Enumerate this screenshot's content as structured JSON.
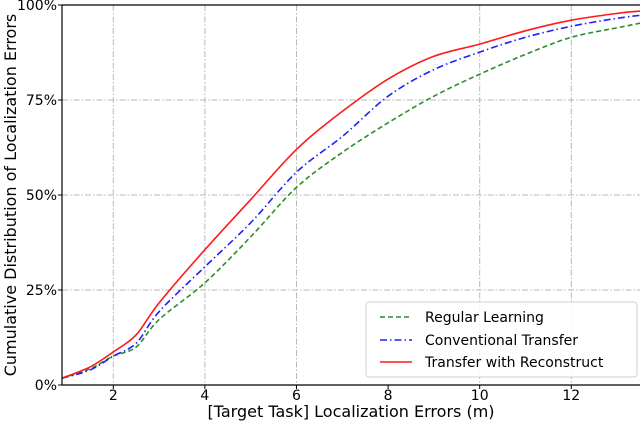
{
  "chart_data": {
    "type": "line",
    "title": "",
    "xlabel": "[Target Task] Localization Errors (m)",
    "ylabel": "Cumulative Distribution of Localization Errors",
    "xlim": [
      0.88,
      13.5
    ],
    "ylim": [
      0,
      100
    ],
    "xticks": [
      2,
      4,
      6,
      8,
      10,
      12
    ],
    "xtick_labels": [
      "2",
      "4",
      "6",
      "8",
      "10",
      "12"
    ],
    "yticks": [
      0,
      25,
      50,
      75,
      100
    ],
    "ytick_labels": [
      "0%",
      "25%",
      "50%",
      "75%",
      "100%"
    ],
    "grid": true,
    "legend_position": "lower right",
    "x": [
      0.88,
      1.5,
      2,
      2.5,
      3,
      4,
      5,
      6,
      7,
      8,
      9,
      10,
      11,
      12,
      13,
      13.5
    ],
    "series": [
      {
        "name": "Regular Learning",
        "color": "#2e8b2e",
        "style": "dashed",
        "values": [
          1.8,
          4.3,
          7.6,
          10.0,
          17.2,
          26.9,
          39.0,
          52.0,
          61.2,
          69.0,
          76.0,
          81.8,
          87.0,
          91.5,
          94.0,
          95.2
        ]
      },
      {
        "name": "Conventional Transfer",
        "color": "#1f1fff",
        "style": "dashdot",
        "values": [
          1.8,
          4.0,
          7.6,
          11.0,
          19.3,
          31.1,
          42.7,
          56.0,
          65.4,
          76.0,
          83.0,
          87.6,
          91.5,
          94.4,
          96.5,
          97.3
        ]
      },
      {
        "name": "Transfer with Reconstruct",
        "color": "#ff1a1a",
        "style": "solid",
        "values": [
          1.8,
          4.8,
          8.7,
          13.2,
          21.6,
          35.6,
          48.8,
          62.0,
          72.0,
          80.5,
          86.5,
          89.7,
          93.2,
          96.0,
          97.8,
          98.4
        ]
      }
    ]
  }
}
